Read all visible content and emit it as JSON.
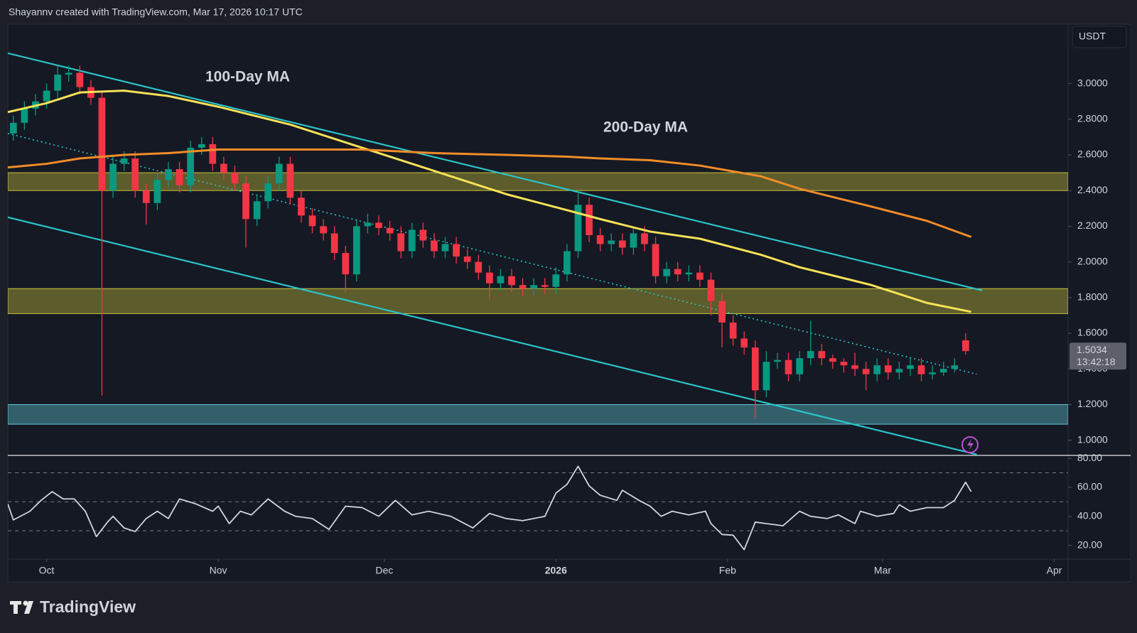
{
  "header": {
    "attribution": "Shayannv created with TradingView.com, Mar 17, 2026 10:17 UTC"
  },
  "footer": {
    "logo": "TradingView"
  },
  "chart_data": [
    {
      "type": "candlestick",
      "currency": "USDT",
      "x": [
        -6,
        -4,
        -2,
        0,
        2,
        4,
        6,
        8,
        10,
        12,
        14,
        16,
        18,
        20,
        22,
        24,
        26,
        28,
        30,
        32,
        34,
        36,
        38,
        40,
        42,
        44,
        46,
        48,
        50,
        52,
        54,
        56,
        58,
        60,
        62,
        64,
        66,
        68,
        70,
        72,
        74,
        76,
        78,
        80,
        82,
        84,
        86,
        88,
        90,
        92,
        94,
        96,
        98,
        100,
        102,
        104,
        106,
        108,
        110,
        112,
        114,
        116,
        118,
        120,
        122,
        124,
        126,
        128,
        130,
        132,
        134,
        136,
        138,
        140,
        142,
        144,
        146,
        148,
        150,
        152,
        154,
        156,
        158,
        160,
        162,
        164,
        166
      ],
      "open": [
        2.72,
        2.78,
        2.86,
        2.9,
        2.96,
        3.05,
        3.06,
        2.98,
        2.92,
        2.4,
        2.55,
        2.58,
        2.4,
        2.33,
        2.46,
        2.52,
        2.43,
        2.64,
        2.66,
        2.55,
        2.5,
        2.44,
        2.24,
        2.34,
        2.44,
        2.55,
        2.36,
        2.26,
        2.2,
        2.16,
        2.05,
        1.93,
        2.2,
        2.22,
        2.19,
        2.16,
        2.06,
        2.18,
        2.12,
        2.06,
        2.1,
        2.03,
        2.0,
        1.94,
        1.88,
        1.92,
        1.87,
        1.85,
        1.87,
        1.86,
        1.93,
        2.06,
        2.32,
        2.15,
        2.1,
        2.12,
        2.08,
        2.16,
        2.1,
        1.92,
        1.96,
        1.93,
        1.94,
        1.9,
        1.78,
        1.66,
        1.57,
        1.52,
        1.28,
        1.44,
        1.45,
        1.37,
        1.46,
        1.5,
        1.46,
        1.44,
        1.42,
        1.4,
        1.37,
        1.42,
        1.38,
        1.4,
        1.42,
        1.37,
        1.38,
        1.4,
        1.56
      ],
      "high": [
        2.82,
        2.9,
        2.94,
        3.0,
        3.1,
        3.1,
        3.1,
        3.02,
        2.96,
        2.59,
        2.62,
        2.62,
        2.44,
        2.5,
        2.56,
        2.56,
        2.68,
        2.7,
        2.7,
        2.59,
        2.54,
        2.48,
        2.38,
        2.48,
        2.59,
        2.59,
        2.4,
        2.3,
        2.24,
        2.2,
        2.09,
        2.24,
        2.27,
        2.26,
        2.23,
        2.2,
        2.22,
        2.22,
        2.16,
        2.14,
        2.14,
        2.07,
        2.04,
        1.98,
        1.96,
        1.96,
        1.91,
        1.91,
        1.91,
        1.97,
        2.1,
        2.4,
        2.36,
        2.19,
        2.16,
        2.16,
        2.2,
        2.2,
        2.14,
        2.0,
        2.0,
        1.98,
        1.98,
        1.94,
        1.82,
        1.7,
        1.61,
        1.56,
        1.5,
        1.49,
        1.49,
        1.5,
        1.67,
        1.54,
        1.48,
        1.46,
        1.49,
        1.44,
        1.46,
        1.46,
        1.44,
        1.46,
        1.46,
        1.42,
        1.44,
        1.46,
        1.6
      ],
      "low": [
        2.68,
        2.74,
        2.82,
        2.86,
        2.92,
        3.01,
        2.94,
        2.88,
        1.25,
        2.36,
        2.51,
        2.36,
        2.21,
        2.29,
        2.42,
        2.39,
        2.39,
        2.6,
        2.51,
        2.46,
        2.4,
        2.08,
        2.2,
        2.3,
        2.4,
        2.32,
        2.22,
        2.16,
        2.12,
        2.01,
        1.83,
        1.89,
        2.16,
        2.15,
        2.12,
        2.02,
        2.02,
        2.08,
        2.02,
        2.02,
        1.99,
        1.96,
        1.9,
        1.79,
        1.84,
        1.83,
        1.81,
        1.81,
        1.82,
        1.82,
        1.89,
        2.02,
        2.11,
        2.06,
        2.06,
        2.04,
        2.04,
        2.06,
        1.88,
        1.88,
        1.89,
        1.89,
        1.86,
        1.7,
        1.52,
        1.53,
        1.48,
        1.12,
        1.24,
        1.4,
        1.33,
        1.33,
        1.42,
        1.42,
        1.4,
        1.38,
        1.36,
        1.28,
        1.33,
        1.34,
        1.34,
        1.36,
        1.33,
        1.34,
        1.36,
        1.38,
        1.48
      ],
      "close": [
        2.78,
        2.86,
        2.9,
        2.96,
        3.05,
        3.06,
        2.98,
        2.92,
        2.4,
        2.55,
        2.58,
        2.4,
        2.33,
        2.46,
        2.52,
        2.43,
        2.64,
        2.66,
        2.55,
        2.5,
        2.44,
        2.24,
        2.34,
        2.44,
        2.55,
        2.36,
        2.26,
        2.2,
        2.16,
        2.05,
        1.93,
        2.2,
        2.22,
        2.19,
        2.16,
        2.06,
        2.18,
        2.12,
        2.06,
        2.1,
        2.03,
        2.0,
        1.94,
        1.88,
        1.92,
        1.87,
        1.85,
        1.87,
        1.86,
        1.93,
        2.06,
        2.32,
        2.15,
        2.1,
        2.12,
        2.08,
        2.16,
        2.1,
        1.92,
        1.96,
        1.93,
        1.94,
        1.9,
        1.78,
        1.66,
        1.57,
        1.52,
        1.28,
        1.44,
        1.45,
        1.37,
        1.46,
        1.5,
        1.46,
        1.44,
        1.42,
        1.4,
        1.37,
        1.42,
        1.38,
        1.4,
        1.42,
        1.37,
        1.38,
        1.4,
        1.42,
        1.5
      ],
      "up_color": "#089981",
      "down_color": "#f23645",
      "series": [
        {
          "name": "100-Day MA",
          "color": "#f7e157",
          "x": [
            -7,
            0,
            6,
            14,
            22,
            31,
            44,
            57,
            70,
            83,
            94,
            100,
            109,
            118,
            129,
            136,
            149,
            159,
            167
          ],
          "values": [
            2.84,
            2.89,
            2.95,
            2.96,
            2.93,
            2.87,
            2.77,
            2.64,
            2.51,
            2.38,
            2.29,
            2.24,
            2.17,
            2.13,
            2.04,
            1.97,
            1.87,
            1.77,
            1.72
          ]
        },
        {
          "name": "200-Day MA",
          "color": "#f28c28",
          "x": [
            -7,
            0,
            6,
            14,
            22,
            31,
            44,
            57,
            70,
            83,
            94,
            100,
            109,
            118,
            129,
            136,
            149,
            159,
            167
          ],
          "values": [
            2.53,
            2.55,
            2.58,
            2.6,
            2.61,
            2.63,
            2.63,
            2.63,
            2.61,
            2.6,
            2.59,
            2.58,
            2.57,
            2.54,
            2.48,
            2.41,
            2.31,
            2.23,
            2.14
          ]
        }
      ],
      "zones": [
        {
          "range": [
            2.4,
            2.5
          ],
          "color": "#c9c13a"
        },
        {
          "range": [
            1.71,
            1.85
          ],
          "color": "#c9c13a"
        },
        {
          "range": [
            1.09,
            1.2
          ],
          "color": "#5fc9d4"
        }
      ],
      "trendlines": [
        {
          "x": [
            -7,
            169
          ],
          "values": [
            3.17,
            1.84
          ],
          "color": "#2bc4c9",
          "style": "solid"
        },
        {
          "x": [
            -7,
            168
          ],
          "values": [
            2.72,
            1.37
          ],
          "color": "#2bc4c9",
          "style": "dotted"
        },
        {
          "x": [
            -7,
            168
          ],
          "values": [
            2.25,
            0.92
          ],
          "color": "#2bc4c9",
          "style": "solid"
        }
      ],
      "last_price": {
        "value": 1.5034,
        "countdown": "13:42:18"
      },
      "xlim": [
        -7,
        184.5
      ],
      "xticks": [
        {
          "value": 0,
          "label": "Oct"
        },
        {
          "value": 31,
          "label": "Nov"
        },
        {
          "value": 61,
          "label": "Dec"
        },
        {
          "value": 92,
          "label": "2026"
        },
        {
          "value": 123,
          "label": "Feb"
        },
        {
          "value": 151,
          "label": "Mar"
        },
        {
          "value": 182,
          "label": "Apr"
        }
      ],
      "ylim": [
        0.915,
        3.333
      ],
      "yticks": [
        {
          "value": 1,
          "label": "1.0000"
        },
        {
          "value": 1.2,
          "label": "1.2000"
        },
        {
          "value": 1.4,
          "label": "1.4000"
        },
        {
          "value": 1.6,
          "label": "1.6000"
        },
        {
          "value": 1.8,
          "label": "1.8000"
        },
        {
          "value": 2,
          "label": "2.0000"
        },
        {
          "value": 2.2,
          "label": "2.2000"
        },
        {
          "value": 2.4,
          "label": "2.4000"
        },
        {
          "value": 2.6,
          "label": "2.6000"
        },
        {
          "value": 2.8,
          "label": "2.8000"
        },
        {
          "value": 3,
          "label": "3.0000"
        }
      ]
    },
    {
      "type": "line",
      "color": "#d1d4dc",
      "x": [
        -7,
        -6,
        -3,
        -1,
        1,
        3,
        5,
        7,
        9,
        11,
        12,
        14,
        16,
        18,
        20,
        22,
        24,
        27,
        30,
        31,
        33,
        35,
        37,
        40,
        43,
        45,
        48,
        51,
        54,
        57,
        60,
        63,
        66,
        69,
        73,
        77,
        80,
        83,
        86,
        90,
        92,
        94,
        96,
        98,
        100,
        103,
        104,
        107,
        109,
        111,
        113,
        116,
        119,
        120,
        122,
        124,
        126,
        128,
        130,
        133,
        136,
        138,
        141,
        143,
        146,
        147,
        150,
        153,
        154,
        156,
        159,
        162,
        164,
        166,
        167
      ],
      "values": [
        48.5,
        37.5,
        43.5,
        51,
        57,
        52,
        52,
        43.5,
        26,
        36,
        40,
        32,
        29.5,
        38.5,
        43.5,
        38.5,
        52,
        48.5,
        43.5,
        47,
        35,
        43.5,
        41,
        52,
        43.5,
        40,
        38.5,
        31,
        47,
        46,
        40,
        51,
        41,
        43.5,
        40,
        32,
        42,
        38.5,
        37,
        40,
        56,
        62,
        74.5,
        61,
        54.5,
        51,
        58,
        51,
        47,
        40,
        43.5,
        41,
        43.5,
        35,
        27.5,
        27,
        17,
        36,
        35,
        33.5,
        43.5,
        40,
        38.5,
        41,
        35,
        43.5,
        40,
        42,
        48,
        43.5,
        46,
        46,
        51,
        63.5,
        57
      ],
      "bands": [
        70,
        50,
        30
      ],
      "xlim": [
        -7,
        184.5
      ],
      "ylim": [
        10.5,
        82
      ],
      "yticks": [
        {
          "value": 80,
          "label": "80.00"
        },
        {
          "value": 60,
          "label": "60.00"
        },
        {
          "value": 40,
          "label": "40.00"
        },
        {
          "value": 20,
          "label": "20.00"
        }
      ]
    }
  ]
}
